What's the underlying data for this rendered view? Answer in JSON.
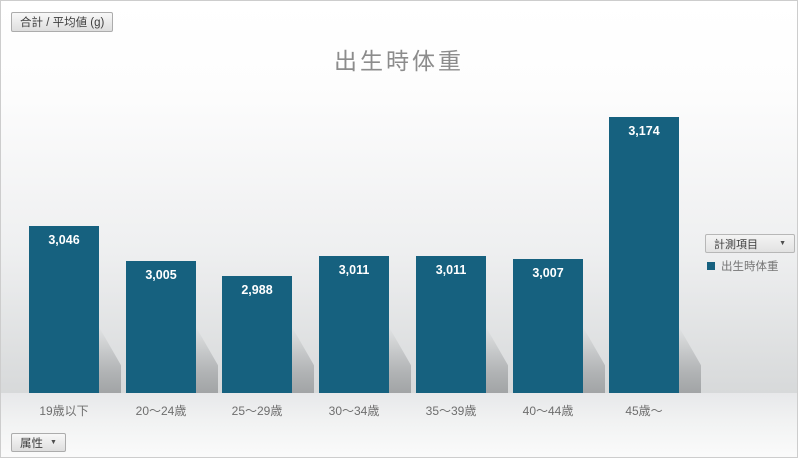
{
  "toolbar": {
    "aggregate_label": "合計 / 平均値 (g)"
  },
  "axis_field_button": {
    "label": "属性"
  },
  "legend": {
    "field_button_label": "計測項目",
    "items": [
      {
        "label": "出生時体重",
        "color": "#16617F"
      }
    ]
  },
  "icons": {
    "dropdown": "▼"
  },
  "colors": {
    "bar": "#16617F",
    "title_text": "#8C8C8C",
    "axis_label_text": "#6E6E6E",
    "background_bottom": "#D7D9DA"
  },
  "chart_data": {
    "type": "bar",
    "title": "出生時体重",
    "categories": [
      "19歳以下",
      "20〜24歳",
      "25〜29歳",
      "30〜34歳",
      "35〜39歳",
      "40〜44歳",
      "45歳〜"
    ],
    "values": [
      3046,
      3005,
      2988,
      3011,
      3011,
      3007,
      3174
    ],
    "value_labels": [
      "3,046",
      "3,005",
      "2,988",
      "3,011",
      "3,011",
      "3,007",
      "3,174"
    ],
    "series_name": "出生時体重",
    "xlabel": "属性",
    "ylabel": "合計 / 平均値 (g)",
    "ylim": [
      2850,
      3200
    ],
    "grid": false,
    "legend_position": "right",
    "data_labels": "inside-end"
  }
}
